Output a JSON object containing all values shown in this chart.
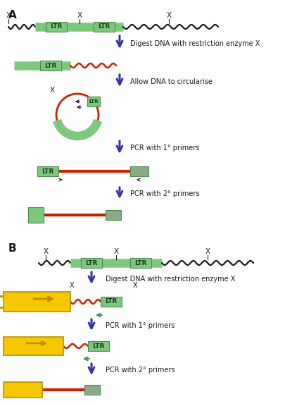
{
  "bg_color": "#ffffff",
  "title_a": "A",
  "title_b": "B",
  "green_ltr": "#7ec87e",
  "green_ltr_border": "#4a8c4a",
  "green_bar": "#7ec87e",
  "red_line": "#cc2200",
  "black_line": "#1a1a1a",
  "blue_arrow": "#3333aa",
  "yellow_bar": "#f5c800",
  "yellow_dark": "#b89000",
  "gray_primer": "#8aaa8a",
  "label_digest": "Digest DNA with restriction enzyme X",
  "label_circularise": "Allow DNA to circularise",
  "label_pcr1_a": "PCR with 1° primers",
  "label_pcr2_a": "PCR with 2° primers",
  "label_digest_b": "Digest DNA with restriction enzyme X",
  "label_pcr1_b": "PCR with 1° primers",
  "label_pcr2_b": "PCR with 2° primers"
}
